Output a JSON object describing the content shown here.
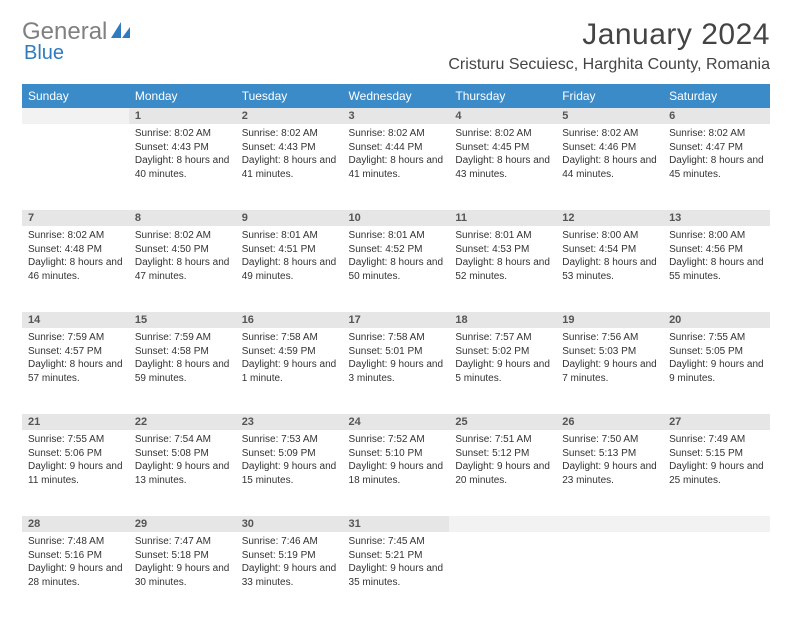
{
  "logo": {
    "text1": "General",
    "text2": "Blue"
  },
  "title": "January 2024",
  "location": "Cristuru Secuiesc, Harghita County, Romania",
  "colors": {
    "header_bg": "#3b8bc9",
    "header_text": "#ffffff",
    "daynum_bg": "#e6e6e6",
    "text": "#333333"
  },
  "weekdays": [
    "Sunday",
    "Monday",
    "Tuesday",
    "Wednesday",
    "Thursday",
    "Friday",
    "Saturday"
  ],
  "weeks": [
    [
      null,
      {
        "n": "1",
        "sr": "8:02 AM",
        "ss": "4:43 PM",
        "dl": "8 hours and 40 minutes."
      },
      {
        "n": "2",
        "sr": "8:02 AM",
        "ss": "4:43 PM",
        "dl": "8 hours and 41 minutes."
      },
      {
        "n": "3",
        "sr": "8:02 AM",
        "ss": "4:44 PM",
        "dl": "8 hours and 41 minutes."
      },
      {
        "n": "4",
        "sr": "8:02 AM",
        "ss": "4:45 PM",
        "dl": "8 hours and 43 minutes."
      },
      {
        "n": "5",
        "sr": "8:02 AM",
        "ss": "4:46 PM",
        "dl": "8 hours and 44 minutes."
      },
      {
        "n": "6",
        "sr": "8:02 AM",
        "ss": "4:47 PM",
        "dl": "8 hours and 45 minutes."
      }
    ],
    [
      {
        "n": "7",
        "sr": "8:02 AM",
        "ss": "4:48 PM",
        "dl": "8 hours and 46 minutes."
      },
      {
        "n": "8",
        "sr": "8:02 AM",
        "ss": "4:50 PM",
        "dl": "8 hours and 47 minutes."
      },
      {
        "n": "9",
        "sr": "8:01 AM",
        "ss": "4:51 PM",
        "dl": "8 hours and 49 minutes."
      },
      {
        "n": "10",
        "sr": "8:01 AM",
        "ss": "4:52 PM",
        "dl": "8 hours and 50 minutes."
      },
      {
        "n": "11",
        "sr": "8:01 AM",
        "ss": "4:53 PM",
        "dl": "8 hours and 52 minutes."
      },
      {
        "n": "12",
        "sr": "8:00 AM",
        "ss": "4:54 PM",
        "dl": "8 hours and 53 minutes."
      },
      {
        "n": "13",
        "sr": "8:00 AM",
        "ss": "4:56 PM",
        "dl": "8 hours and 55 minutes."
      }
    ],
    [
      {
        "n": "14",
        "sr": "7:59 AM",
        "ss": "4:57 PM",
        "dl": "8 hours and 57 minutes."
      },
      {
        "n": "15",
        "sr": "7:59 AM",
        "ss": "4:58 PM",
        "dl": "8 hours and 59 minutes."
      },
      {
        "n": "16",
        "sr": "7:58 AM",
        "ss": "4:59 PM",
        "dl": "9 hours and 1 minute."
      },
      {
        "n": "17",
        "sr": "7:58 AM",
        "ss": "5:01 PM",
        "dl": "9 hours and 3 minutes."
      },
      {
        "n": "18",
        "sr": "7:57 AM",
        "ss": "5:02 PM",
        "dl": "9 hours and 5 minutes."
      },
      {
        "n": "19",
        "sr": "7:56 AM",
        "ss": "5:03 PM",
        "dl": "9 hours and 7 minutes."
      },
      {
        "n": "20",
        "sr": "7:55 AM",
        "ss": "5:05 PM",
        "dl": "9 hours and 9 minutes."
      }
    ],
    [
      {
        "n": "21",
        "sr": "7:55 AM",
        "ss": "5:06 PM",
        "dl": "9 hours and 11 minutes."
      },
      {
        "n": "22",
        "sr": "7:54 AM",
        "ss": "5:08 PM",
        "dl": "9 hours and 13 minutes."
      },
      {
        "n": "23",
        "sr": "7:53 AM",
        "ss": "5:09 PM",
        "dl": "9 hours and 15 minutes."
      },
      {
        "n": "24",
        "sr": "7:52 AM",
        "ss": "5:10 PM",
        "dl": "9 hours and 18 minutes."
      },
      {
        "n": "25",
        "sr": "7:51 AM",
        "ss": "5:12 PM",
        "dl": "9 hours and 20 minutes."
      },
      {
        "n": "26",
        "sr": "7:50 AM",
        "ss": "5:13 PM",
        "dl": "9 hours and 23 minutes."
      },
      {
        "n": "27",
        "sr": "7:49 AM",
        "ss": "5:15 PM",
        "dl": "9 hours and 25 minutes."
      }
    ],
    [
      {
        "n": "28",
        "sr": "7:48 AM",
        "ss": "5:16 PM",
        "dl": "9 hours and 28 minutes."
      },
      {
        "n": "29",
        "sr": "7:47 AM",
        "ss": "5:18 PM",
        "dl": "9 hours and 30 minutes."
      },
      {
        "n": "30",
        "sr": "7:46 AM",
        "ss": "5:19 PM",
        "dl": "9 hours and 33 minutes."
      },
      {
        "n": "31",
        "sr": "7:45 AM",
        "ss": "5:21 PM",
        "dl": "9 hours and 35 minutes."
      },
      null,
      null,
      null
    ]
  ],
  "labels": {
    "sunrise": "Sunrise:",
    "sunset": "Sunset:",
    "daylight": "Daylight:"
  }
}
